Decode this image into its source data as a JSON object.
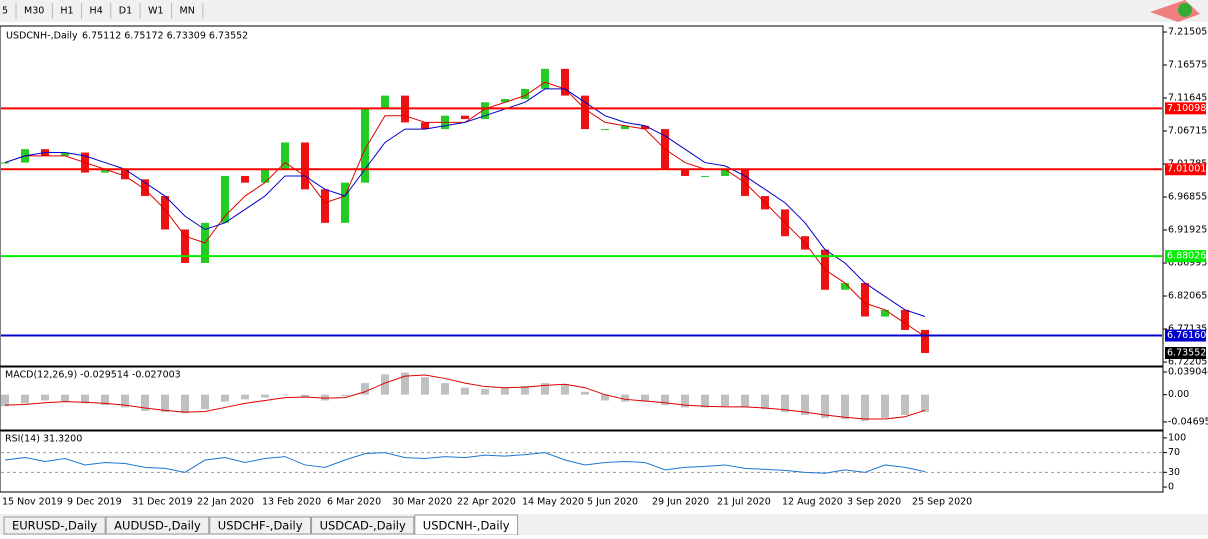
{
  "toolbar": {
    "timeframes": [
      "5",
      "M30",
      "H1",
      "H4",
      "D1",
      "W1",
      "MN"
    ]
  },
  "chart": {
    "type": "candlestick",
    "title": "USDCNH-,Daily",
    "ohlc_text": "6.75112 6.75172 6.73309 6.73552",
    "ylim": [
      6.7176,
      7.2225
    ],
    "yticks": [
      7.21505,
      7.16575,
      7.11645,
      7.06715,
      7.01785,
      6.96855,
      6.91925,
      6.86995,
      6.82065,
      6.77135,
      6.72205
    ],
    "x_labels": [
      "15 Nov 2019",
      "9 Dec 2019",
      "31 Dec 2019",
      "22 Jan 2020",
      "13 Feb 2020",
      "6 Mar 2020",
      "30 Mar 2020",
      "22 Apr 2020",
      "14 May 2020",
      "5 Jun 2020",
      "29 Jun 2020",
      "21 Jul 2020",
      "12 Aug 2020",
      "3 Sep 2020",
      "25 Sep 2020"
    ],
    "up_color": "#22cc22",
    "down_color": "#ee1111",
    "closes": [
      7.02,
      7.04,
      7.03,
      7.035,
      7.005,
      7.01,
      6.995,
      6.97,
      6.92,
      6.87,
      6.93,
      7.0,
      6.99,
      7.01,
      7.05,
      6.98,
      6.93,
      6.99,
      7.1,
      7.12,
      7.08,
      7.07,
      7.09,
      7.085,
      7.11,
      7.115,
      7.13,
      7.16,
      7.12,
      7.07,
      7.07,
      7.075,
      7.07,
      7.01,
      7.0,
      7.0,
      7.01,
      6.97,
      6.95,
      6.91,
      6.89,
      6.83,
      6.84,
      6.79,
      6.8,
      6.77,
      6.73552
    ],
    "ma_fast": {
      "color": "#dd0000",
      "values": [
        7.02,
        7.03,
        7.03,
        7.03,
        7.02,
        7.01,
        7.0,
        6.98,
        6.95,
        6.91,
        6.9,
        6.94,
        6.97,
        6.99,
        7.02,
        7.0,
        6.96,
        6.97,
        7.04,
        7.09,
        7.09,
        7.08,
        7.08,
        7.08,
        7.1,
        7.11,
        7.12,
        7.14,
        7.13,
        7.1,
        7.08,
        7.075,
        7.07,
        7.04,
        7.02,
        7.01,
        7.01,
        6.99,
        6.96,
        6.93,
        6.9,
        6.86,
        6.84,
        6.81,
        6.8,
        6.78,
        6.76
      ]
    },
    "ma_slow": {
      "color": "#0000cc",
      "values": [
        7.02,
        7.03,
        7.035,
        7.035,
        7.03,
        7.02,
        7.01,
        6.99,
        6.97,
        6.94,
        6.92,
        6.93,
        6.95,
        6.97,
        7.0,
        7.0,
        6.98,
        6.97,
        7.01,
        7.05,
        7.07,
        7.07,
        7.075,
        7.08,
        7.09,
        7.1,
        7.11,
        7.13,
        7.13,
        7.11,
        7.09,
        7.08,
        7.075,
        7.06,
        7.04,
        7.02,
        7.015,
        7.0,
        6.98,
        6.96,
        6.93,
        6.89,
        6.87,
        6.84,
        6.82,
        6.8,
        6.79
      ]
    },
    "levels": [
      {
        "value": 7.10098,
        "color": "#ff0000"
      },
      {
        "value": 7.01001,
        "color": "#ff0000"
      },
      {
        "value": 6.88026,
        "color": "#00ee00"
      },
      {
        "value": 6.7616,
        "label": "6.76160",
        "color": "#0000cc"
      }
    ],
    "last_price": 6.73552
  },
  "macd": {
    "title": "MACD(12,26,9) -0.029514 -0.027003",
    "ylim": [
      -0.0592,
      0.046
    ],
    "yticks": [
      0.039044,
      {
        "value": 0,
        "label": "0.00"
      },
      -0.046959
    ],
    "hist_color": "#c0c0c0",
    "signal_color": "#dd0000",
    "histogram": [
      -0.02,
      -0.015,
      -0.01,
      -0.012,
      -0.015,
      -0.018,
      -0.022,
      -0.028,
      -0.03,
      -0.032,
      -0.025,
      -0.012,
      -0.008,
      -0.005,
      0.0,
      -0.005,
      -0.01,
      -0.002,
      0.02,
      0.035,
      0.038,
      0.03,
      0.02,
      0.012,
      0.01,
      0.012,
      0.015,
      0.02,
      0.018,
      0.005,
      -0.01,
      -0.012,
      -0.012,
      -0.018,
      -0.022,
      -0.022,
      -0.02,
      -0.022,
      -0.025,
      -0.03,
      -0.035,
      -0.04,
      -0.042,
      -0.045,
      -0.04,
      -0.035,
      -0.029514
    ],
    "signal": [
      -0.018,
      -0.017,
      -0.014,
      -0.012,
      -0.013,
      -0.015,
      -0.018,
      -0.023,
      -0.027,
      -0.03,
      -0.029,
      -0.022,
      -0.015,
      -0.01,
      -0.005,
      -0.004,
      -0.006,
      -0.005,
      0.005,
      0.02,
      0.032,
      0.034,
      0.028,
      0.02,
      0.014,
      0.012,
      0.013,
      0.016,
      0.018,
      0.012,
      0.0,
      -0.008,
      -0.011,
      -0.014,
      -0.018,
      -0.02,
      -0.021,
      -0.021,
      -0.023,
      -0.026,
      -0.03,
      -0.035,
      -0.039,
      -0.042,
      -0.042,
      -0.038,
      -0.027003
    ]
  },
  "rsi": {
    "title": "RSI(14) 31.3200",
    "ylim": [
      -8,
      112
    ],
    "yticks": [
      100,
      70,
      30,
      0
    ],
    "color": "#1e78d2",
    "values": [
      55,
      60,
      52,
      58,
      45,
      50,
      48,
      40,
      38,
      30,
      55,
      60,
      50,
      58,
      62,
      45,
      40,
      55,
      68,
      70,
      60,
      58,
      62,
      60,
      65,
      63,
      66,
      70,
      55,
      45,
      50,
      52,
      50,
      35,
      40,
      42,
      45,
      38,
      36,
      34,
      30,
      28,
      35,
      30,
      45,
      40,
      31.32
    ]
  },
  "tabs": [
    "EURUSD-,Daily",
    "AUDUSD-,Daily",
    "USDCHF-,Daily",
    "USDCAD-,Daily",
    "USDCNH-,Daily"
  ],
  "active_tab": 4
}
